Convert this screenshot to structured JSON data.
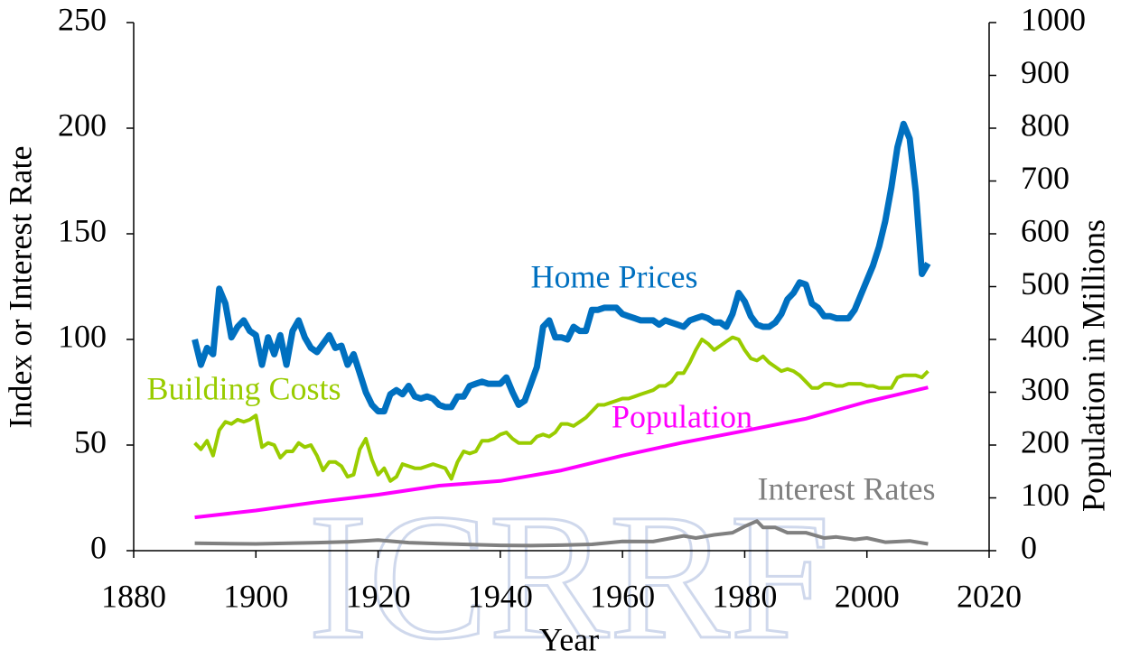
{
  "chart_data": {
    "type": "line",
    "xlabel": "Year",
    "ylabel": "Index or Interest Rate",
    "y2label": "Population in Millions",
    "watermark": "ICRRF",
    "xlim": [
      1880,
      2020
    ],
    "xticks": [
      1880,
      1900,
      1920,
      1940,
      1960,
      1980,
      2000,
      2020
    ],
    "ylim": [
      0,
      250
    ],
    "yticks": [
      0,
      50,
      100,
      150,
      200,
      250
    ],
    "y2lim": [
      0,
      1000
    ],
    "y2ticks": [
      0,
      100,
      200,
      300,
      400,
      500,
      600,
      700,
      800,
      900,
      1000
    ],
    "grid": false,
    "series": [
      {
        "name": "Home Prices",
        "color": "#0070c0",
        "x": [
          1890,
          1891,
          1892,
          1893,
          1894,
          1895,
          1896,
          1897,
          1898,
          1899,
          1900,
          1901,
          1902,
          1903,
          1904,
          1905,
          1906,
          1907,
          1908,
          1909,
          1910,
          1911,
          1912,
          1913,
          1914,
          1915,
          1916,
          1917,
          1918,
          1919,
          1920,
          1921,
          1922,
          1923,
          1924,
          1925,
          1926,
          1927,
          1928,
          1929,
          1930,
          1931,
          1932,
          1933,
          1934,
          1935,
          1936,
          1937,
          1938,
          1939,
          1940,
          1941,
          1942,
          1943,
          1944,
          1945,
          1946,
          1947,
          1948,
          1949,
          1950,
          1951,
          1952,
          1953,
          1954,
          1955,
          1956,
          1957,
          1958,
          1959,
          1960,
          1961,
          1962,
          1963,
          1964,
          1965,
          1966,
          1967,
          1968,
          1969,
          1970,
          1971,
          1972,
          1973,
          1974,
          1975,
          1976,
          1977,
          1978,
          1979,
          1980,
          1981,
          1982,
          1983,
          1984,
          1985,
          1986,
          1987,
          1988,
          1989,
          1990,
          1991,
          1992,
          1993,
          1994,
          1995,
          1996,
          1997,
          1998,
          1999,
          2000,
          2001,
          2002,
          2003,
          2004,
          2005,
          2006,
          2007,
          2008,
          2009,
          2010
        ],
        "values": [
          100,
          88,
          96,
          93,
          124,
          117,
          101,
          106,
          109,
          104,
          102,
          88,
          101,
          93,
          102,
          88,
          104,
          109,
          101,
          96,
          94,
          98,
          102,
          96,
          97,
          88,
          93,
          84,
          75,
          69,
          66,
          66,
          74,
          76,
          74,
          78,
          73,
          72,
          73,
          72,
          69,
          68,
          68,
          73,
          73,
          78,
          79,
          80,
          79,
          79,
          79,
          82,
          75,
          69,
          71,
          79,
          87,
          106,
          109,
          101,
          101,
          100,
          106,
          104,
          104,
          114,
          114,
          115,
          115,
          115,
          112,
          111,
          110,
          109,
          109,
          109,
          107,
          109,
          108,
          107,
          106,
          109,
          110,
          111,
          110,
          108,
          108,
          106,
          112,
          122,
          118,
          111,
          107,
          106,
          106,
          108,
          112,
          119,
          122,
          127,
          126,
          117,
          115,
          111,
          111,
          110,
          110,
          110,
          114,
          121,
          128,
          135,
          144,
          156,
          172,
          191,
          202,
          195,
          170,
          131,
          136
        ]
      },
      {
        "name": "Building Costs",
        "color": "#99cc00",
        "x": [
          1890,
          1891,
          1892,
          1893,
          1894,
          1895,
          1896,
          1897,
          1898,
          1899,
          1900,
          1901,
          1902,
          1903,
          1904,
          1905,
          1906,
          1907,
          1908,
          1909,
          1910,
          1911,
          1912,
          1913,
          1914,
          1915,
          1916,
          1917,
          1918,
          1919,
          1920,
          1921,
          1922,
          1923,
          1924,
          1925,
          1926,
          1927,
          1928,
          1929,
          1930,
          1931,
          1932,
          1933,
          1934,
          1935,
          1936,
          1937,
          1938,
          1939,
          1940,
          1941,
          1942,
          1943,
          1944,
          1945,
          1946,
          1947,
          1948,
          1949,
          1950,
          1951,
          1952,
          1953,
          1954,
          1955,
          1956,
          1957,
          1958,
          1959,
          1960,
          1961,
          1962,
          1963,
          1964,
          1965,
          1966,
          1967,
          1968,
          1969,
          1970,
          1971,
          1972,
          1973,
          1974,
          1975,
          1976,
          1977,
          1978,
          1979,
          1980,
          1981,
          1982,
          1983,
          1984,
          1985,
          1986,
          1987,
          1988,
          1989,
          1990,
          1991,
          1992,
          1993,
          1994,
          1995,
          1996,
          1997,
          1998,
          1999,
          2000,
          2001,
          2002,
          2003,
          2004,
          2005,
          2006,
          2007,
          2008,
          2009,
          2010
        ],
        "values": [
          51,
          48,
          52,
          45,
          57,
          61,
          60,
          62,
          61,
          62,
          64,
          49,
          51,
          50,
          44,
          47,
          47,
          51,
          49,
          50,
          45,
          38,
          42,
          42,
          40,
          35,
          36,
          48,
          53,
          43,
          36,
          39,
          33,
          35,
          41,
          40,
          39,
          39,
          40,
          41,
          40,
          39,
          34,
          42,
          47,
          46,
          47,
          52,
          52,
          53,
          55,
          56,
          53,
          51,
          51,
          51,
          54,
          55,
          54,
          56,
          60,
          60,
          59,
          61,
          63,
          66,
          69,
          69,
          70,
          71,
          72,
          72,
          73,
          74,
          75,
          76,
          78,
          78,
          80,
          84,
          84,
          89,
          95,
          100,
          98,
          95,
          97,
          99,
          101,
          100,
          95,
          91,
          90,
          92,
          89,
          87,
          85,
          86,
          85,
          83,
          80,
          77,
          77,
          79,
          79,
          78,
          78,
          79,
          79,
          79,
          78,
          78,
          77,
          77,
          77,
          82,
          83,
          83,
          83,
          82,
          85
        ]
      },
      {
        "name": "Population",
        "color": "#ff00ff",
        "axis": "y2",
        "x": [
          1890,
          1900,
          1910,
          1920,
          1930,
          1940,
          1950,
          1960,
          1970,
          1980,
          1990,
          2000,
          2010
        ],
        "values": [
          63,
          76,
          92,
          106,
          123,
          132,
          152,
          180,
          205,
          227,
          250,
          282,
          309
        ]
      },
      {
        "name": "Interest Rates",
        "color": "#808080",
        "x": [
          1890,
          1900,
          1910,
          1915,
          1920,
          1925,
          1930,
          1940,
          1945,
          1950,
          1955,
          1960,
          1965,
          1970,
          1972,
          1975,
          1978,
          1980,
          1982,
          1983,
          1985,
          1987,
          1989,
          1990,
          1993,
          1995,
          1998,
          2000,
          2003,
          2007,
          2010
        ],
        "values": [
          3.5,
          3.2,
          3.8,
          4.2,
          5,
          3.8,
          3.3,
          2.5,
          2.4,
          2.6,
          3,
          4.4,
          4.3,
          7,
          6,
          7.5,
          8.5,
          11.5,
          14,
          11,
          11,
          8.5,
          8.5,
          8.5,
          6,
          6.5,
          5.3,
          6,
          4,
          4.6,
          3.2
        ]
      }
    ]
  }
}
